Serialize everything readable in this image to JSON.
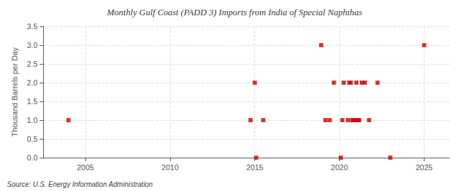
{
  "chart_data": {
    "type": "scatter",
    "title": "Monthly Gulf Coast (PADD 3) Imports from India of Special Naphthas",
    "ylabel": "Thousand Barrels per Day",
    "source": "Source: U.S. Energy Information Administration",
    "color": "#cc0000",
    "marker": "square",
    "grid": true,
    "xlim": [
      2002.5,
      2026.5
    ],
    "ylim": [
      0.0,
      3.5
    ],
    "xticks": [
      2005,
      2010,
      2015,
      2020,
      2025
    ],
    "yticks": [
      {
        "value": 0.0,
        "label": "0.0"
      },
      0.5,
      {
        "value": 1.0,
        "label": "1.0"
      },
      1.5,
      {
        "value": 2.0,
        "label": "2.0"
      },
      2.5,
      {
        "value": 3.0,
        "label": "3.0"
      },
      3.5
    ],
    "x": [
      2004.0,
      2014.75,
      2015.0,
      2015.08,
      2015.5,
      2018.92,
      2019.17,
      2019.42,
      2019.67,
      2020.08,
      2020.17,
      2020.25,
      2020.5,
      2020.58,
      2020.67,
      2020.75,
      2020.83,
      2020.92,
      2021.0,
      2021.08,
      2021.17,
      2021.33,
      2021.5,
      2021.75,
      2022.25,
      2023.0,
      2025.0
    ],
    "values": [
      1.0,
      1.0,
      2.0,
      0.0,
      1.0,
      3.0,
      1.0,
      1.0,
      2.0,
      0.0,
      1.0,
      2.0,
      1.0,
      2.0,
      2.0,
      1.0,
      1.0,
      1.0,
      2.0,
      1.0,
      1.0,
      2.0,
      2.0,
      1.0,
      2.0,
      0.0,
      3.0
    ]
  }
}
